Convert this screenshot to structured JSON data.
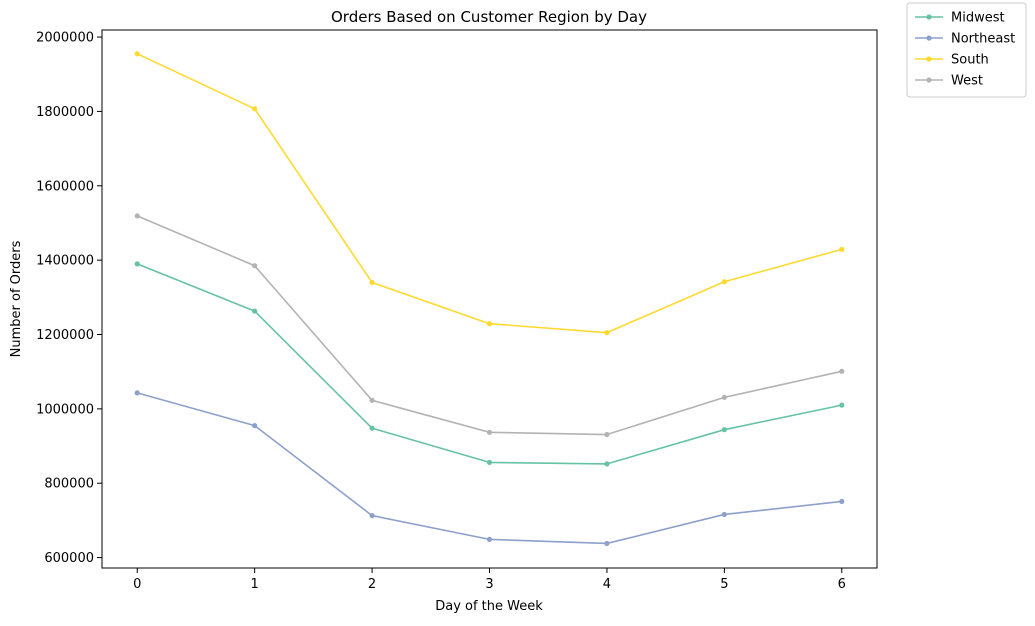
{
  "chart_data": {
    "type": "line",
    "title": "Orders Based on Customer Region by Day",
    "xlabel": "Day of the Week",
    "ylabel": "Number of Orders",
    "x": [
      0,
      1,
      2,
      3,
      4,
      5,
      6
    ],
    "x_tick_labels": [
      "0",
      "1",
      "2",
      "3",
      "4",
      "5",
      "6"
    ],
    "xlim": [
      -0.3,
      6.3
    ],
    "y_ticks": [
      600000,
      800000,
      1000000,
      1200000,
      1400000,
      1600000,
      1800000,
      2000000
    ],
    "y_tick_labels": [
      "600000",
      "800000",
      "1000000",
      "1200000",
      "1400000",
      "1600000",
      "1800000",
      "2000000"
    ],
    "ylim": [
      572000,
      2019000
    ],
    "grid": false,
    "legend_position": "outside-top-right",
    "series": [
      {
        "name": "Midwest",
        "color": "#66c2a5",
        "values": [
          1390000,
          1263000,
          948000,
          856000,
          852000,
          944000,
          1010000
        ]
      },
      {
        "name": "Northeast",
        "color": "#8da0cb",
        "values": [
          1043000,
          955000,
          713000,
          649000,
          638000,
          716000,
          751000
        ]
      },
      {
        "name": "South",
        "color": "#ffd92f",
        "values": [
          1955000,
          1807000,
          1340000,
          1229000,
          1205000,
          1342000,
          1429000
        ]
      },
      {
        "name": "West",
        "color": "#b3b3b3",
        "values": [
          1519000,
          1385000,
          1023000,
          937000,
          931000,
          1031000,
          1101000
        ]
      }
    ]
  }
}
